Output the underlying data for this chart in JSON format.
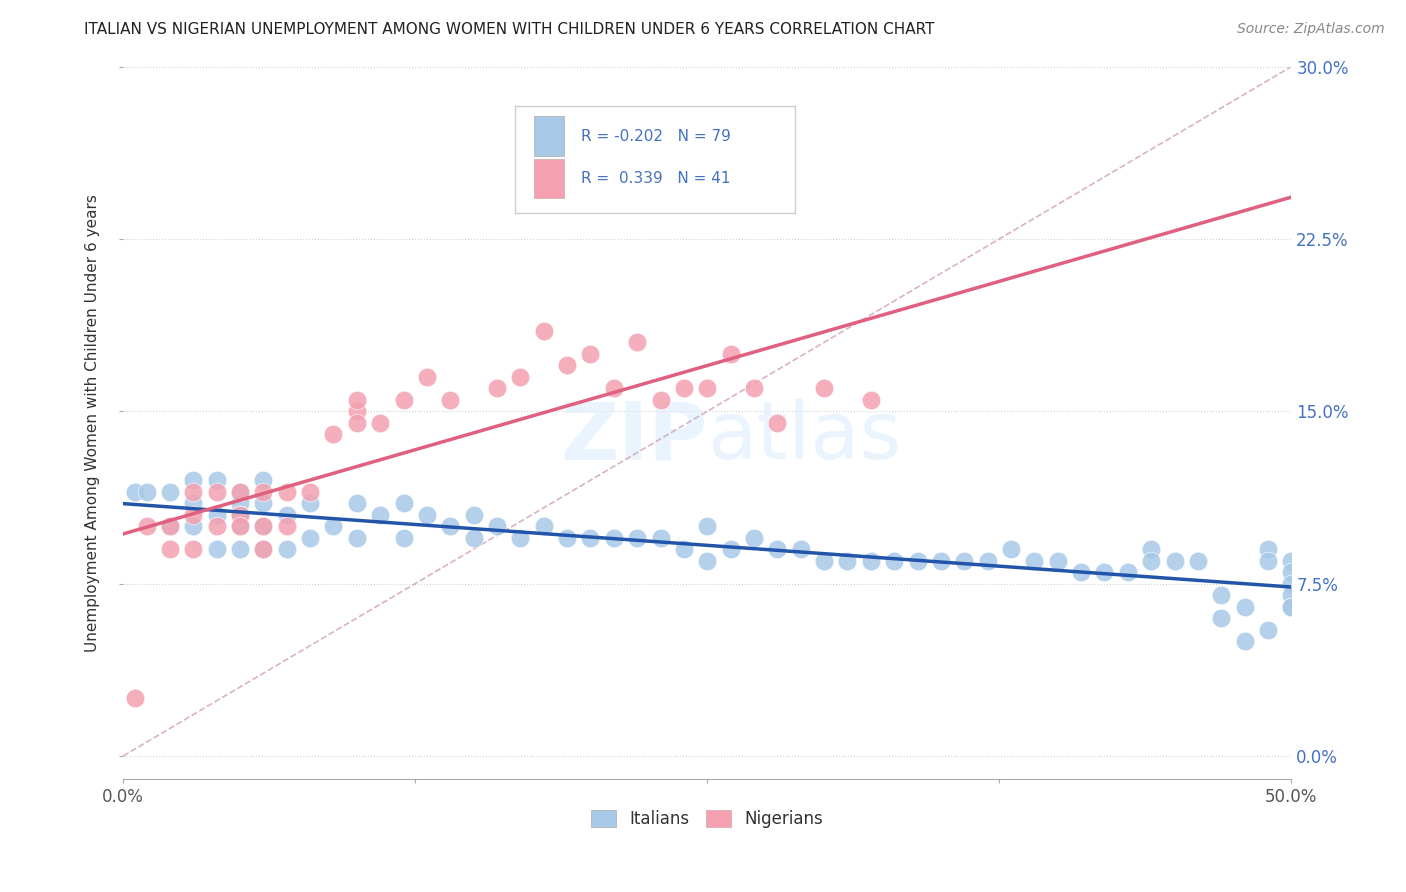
{
  "title": "ITALIAN VS NIGERIAN UNEMPLOYMENT AMONG WOMEN WITH CHILDREN UNDER 6 YEARS CORRELATION CHART",
  "source": "Source: ZipAtlas.com",
  "ylabel": "Unemployment Among Women with Children Under 6 years",
  "xlim": [
    0.0,
    0.5
  ],
  "ylim": [
    -0.01,
    0.3
  ],
  "x_ticks": [
    0.0,
    0.125,
    0.25,
    0.375,
    0.5
  ],
  "x_tick_labels": [
    "0.0%",
    "",
    "",
    "",
    "50.0%"
  ],
  "y_ticks": [
    0.0,
    0.075,
    0.15,
    0.225,
    0.3
  ],
  "y_tick_labels": [
    "0.0%",
    "7.5%",
    "15.0%",
    "22.5%",
    "30.0%"
  ],
  "italian_color": "#a8c8e8",
  "nigerian_color": "#f4a0b0",
  "italian_line_color": "#2255aa",
  "nigerian_line_color": "#e06080",
  "diagonal_color": "#e8a0b0",
  "italian_r": -0.202,
  "italian_n": 79,
  "nigerian_r": 0.339,
  "nigerian_n": 41,
  "legend_labels": [
    "Italians",
    "Nigerians"
  ],
  "it_x": [
    0.005,
    0.01,
    0.02,
    0.02,
    0.03,
    0.03,
    0.03,
    0.04,
    0.04,
    0.04,
    0.05,
    0.05,
    0.05,
    0.05,
    0.05,
    0.06,
    0.06,
    0.06,
    0.06,
    0.07,
    0.07,
    0.08,
    0.08,
    0.09,
    0.1,
    0.1,
    0.11,
    0.12,
    0.12,
    0.13,
    0.14,
    0.15,
    0.15,
    0.16,
    0.17,
    0.18,
    0.19,
    0.2,
    0.21,
    0.22,
    0.23,
    0.24,
    0.25,
    0.25,
    0.26,
    0.27,
    0.28,
    0.29,
    0.3,
    0.31,
    0.32,
    0.33,
    0.34,
    0.35,
    0.36,
    0.37,
    0.38,
    0.39,
    0.4,
    0.41,
    0.42,
    0.43,
    0.44,
    0.44,
    0.45,
    0.46,
    0.47,
    0.47,
    0.48,
    0.48,
    0.49,
    0.49,
    0.49,
    0.5,
    0.5,
    0.5,
    0.5,
    0.5,
    0.5
  ],
  "it_y": [
    0.115,
    0.115,
    0.115,
    0.1,
    0.12,
    0.11,
    0.1,
    0.12,
    0.105,
    0.09,
    0.115,
    0.11,
    0.105,
    0.1,
    0.09,
    0.12,
    0.11,
    0.1,
    0.09,
    0.105,
    0.09,
    0.11,
    0.095,
    0.1,
    0.11,
    0.095,
    0.105,
    0.11,
    0.095,
    0.105,
    0.1,
    0.105,
    0.095,
    0.1,
    0.095,
    0.1,
    0.095,
    0.095,
    0.095,
    0.095,
    0.095,
    0.09,
    0.1,
    0.085,
    0.09,
    0.095,
    0.09,
    0.09,
    0.085,
    0.085,
    0.085,
    0.085,
    0.085,
    0.085,
    0.085,
    0.085,
    0.09,
    0.085,
    0.085,
    0.08,
    0.08,
    0.08,
    0.09,
    0.085,
    0.085,
    0.085,
    0.07,
    0.06,
    0.065,
    0.05,
    0.09,
    0.085,
    0.055,
    0.085,
    0.08,
    0.075,
    0.07,
    0.065,
    0.065
  ],
  "ng_x": [
    0.005,
    0.01,
    0.02,
    0.02,
    0.03,
    0.03,
    0.03,
    0.04,
    0.04,
    0.05,
    0.05,
    0.05,
    0.06,
    0.06,
    0.06,
    0.07,
    0.07,
    0.08,
    0.09,
    0.1,
    0.1,
    0.1,
    0.11,
    0.12,
    0.13,
    0.14,
    0.16,
    0.17,
    0.18,
    0.19,
    0.2,
    0.21,
    0.22,
    0.23,
    0.24,
    0.25,
    0.26,
    0.27,
    0.28,
    0.3,
    0.32
  ],
  "ng_y": [
    0.025,
    0.1,
    0.1,
    0.09,
    0.115,
    0.105,
    0.09,
    0.115,
    0.1,
    0.115,
    0.105,
    0.1,
    0.115,
    0.1,
    0.09,
    0.115,
    0.1,
    0.115,
    0.14,
    0.15,
    0.145,
    0.155,
    0.145,
    0.155,
    0.165,
    0.155,
    0.16,
    0.165,
    0.185,
    0.17,
    0.175,
    0.16,
    0.18,
    0.155,
    0.16,
    0.16,
    0.175,
    0.16,
    0.145,
    0.16,
    0.155
  ]
}
